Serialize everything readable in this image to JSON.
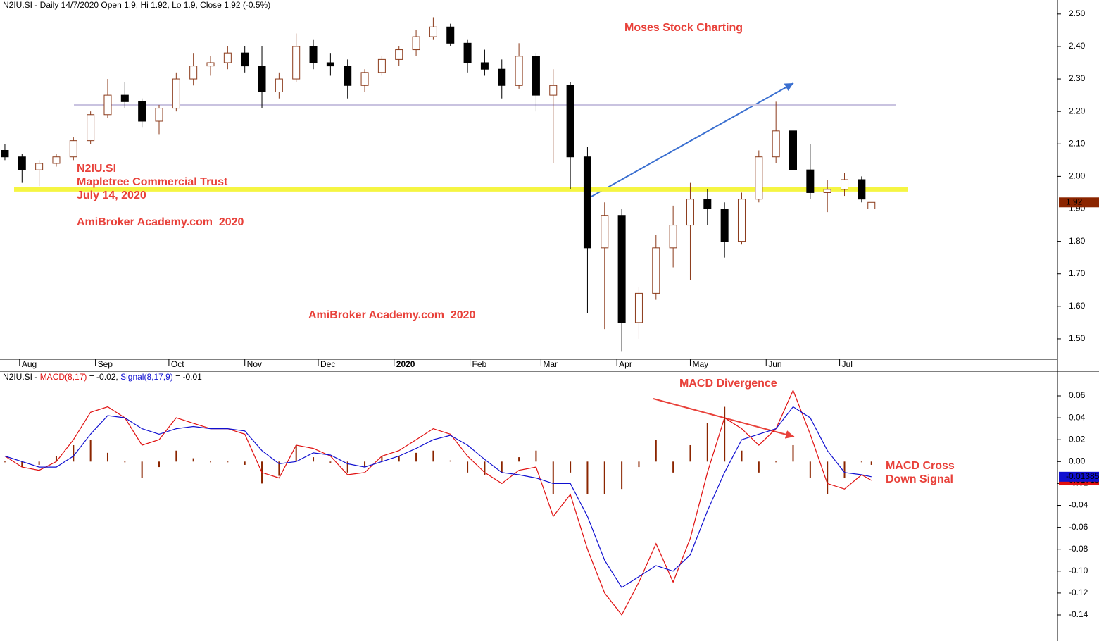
{
  "chart_data": [
    {
      "type": "candlestick",
      "title": "N2IU.SI - Daily 14/7/2020 Open 1.9, Hi 1.92, Lo 1.9, Close 1.92 (-0.5%)",
      "x": [
        "2019-07-26",
        "2019-08-02",
        "2019-08-09",
        "2019-08-16",
        "2019-08-23",
        "2019-08-30",
        "2019-09-06",
        "2019-09-13",
        "2019-09-20",
        "2019-09-27",
        "2019-10-04",
        "2019-10-11",
        "2019-10-18",
        "2019-10-25",
        "2019-11-01",
        "2019-11-08",
        "2019-11-15",
        "2019-11-22",
        "2019-11-29",
        "2019-12-06",
        "2019-12-13",
        "2019-12-20",
        "2019-12-27",
        "2020-01-03",
        "2020-01-10",
        "2020-01-17",
        "2020-01-24",
        "2020-01-31",
        "2020-02-07",
        "2020-02-14",
        "2020-02-21",
        "2020-02-28",
        "2020-03-06",
        "2020-03-13",
        "2020-03-20",
        "2020-03-27",
        "2020-04-03",
        "2020-04-10",
        "2020-04-17",
        "2020-04-24",
        "2020-05-01",
        "2020-05-08",
        "2020-05-15",
        "2020-05-22",
        "2020-05-29",
        "2020-06-05",
        "2020-06-12",
        "2020-06-19",
        "2020-06-26",
        "2020-07-03",
        "2020-07-10",
        "2020-07-14"
      ],
      "open": [
        2.08,
        2.06,
        2.02,
        2.04,
        2.06,
        2.11,
        2.19,
        2.25,
        2.23,
        2.17,
        2.21,
        2.3,
        2.34,
        2.35,
        2.38,
        2.34,
        2.26,
        2.3,
        2.4,
        2.35,
        2.34,
        2.28,
        2.32,
        2.36,
        2.39,
        2.43,
        2.46,
        2.41,
        2.35,
        2.33,
        2.28,
        2.37,
        2.25,
        2.28,
        2.06,
        1.78,
        1.88,
        1.55,
        1.64,
        1.78,
        1.85,
        1.93,
        1.9,
        1.8,
        1.93,
        2.06,
        2.14,
        2.02,
        1.95,
        1.96,
        1.99,
        1.9
      ],
      "high": [
        2.1,
        2.07,
        2.05,
        2.07,
        2.12,
        2.2,
        2.3,
        2.29,
        2.24,
        2.22,
        2.32,
        2.38,
        2.37,
        2.4,
        2.4,
        2.4,
        2.32,
        2.44,
        2.42,
        2.38,
        2.36,
        2.33,
        2.37,
        2.4,
        2.45,
        2.49,
        2.47,
        2.42,
        2.39,
        2.36,
        2.41,
        2.38,
        2.33,
        2.29,
        2.09,
        1.92,
        1.9,
        1.66,
        1.82,
        1.91,
        1.98,
        1.96,
        1.92,
        1.95,
        2.08,
        2.23,
        2.16,
        2.1,
        1.99,
        2.01,
        2.0,
        1.92
      ],
      "low": [
        2.05,
        1.98,
        1.97,
        2.03,
        2.05,
        2.1,
        2.18,
        2.21,
        2.15,
        2.13,
        2.2,
        2.28,
        2.31,
        2.33,
        2.32,
        2.21,
        2.24,
        2.29,
        2.33,
        2.31,
        2.24,
        2.26,
        2.31,
        2.34,
        2.37,
        2.42,
        2.4,
        2.32,
        2.31,
        2.24,
        2.27,
        2.2,
        2.04,
        1.96,
        1.58,
        1.53,
        1.46,
        1.5,
        1.62,
        1.72,
        1.68,
        1.85,
        1.75,
        1.79,
        1.92,
        2.04,
        1.97,
        1.93,
        1.89,
        1.94,
        1.92,
        1.9
      ],
      "close": [
        2.06,
        2.02,
        2.04,
        2.06,
        2.11,
        2.19,
        2.25,
        2.23,
        2.17,
        2.21,
        2.3,
        2.34,
        2.35,
        2.38,
        2.34,
        2.26,
        2.3,
        2.4,
        2.35,
        2.34,
        2.28,
        2.32,
        2.36,
        2.39,
        2.43,
        2.46,
        2.41,
        2.35,
        2.33,
        2.28,
        2.37,
        2.25,
        2.28,
        2.06,
        1.78,
        1.88,
        1.55,
        1.64,
        1.78,
        1.85,
        1.93,
        1.9,
        1.8,
        1.93,
        2.06,
        2.14,
        2.02,
        1.95,
        1.96,
        1.99,
        1.93,
        1.92
      ],
      "up_color": "#8b3a1a",
      "down_color": "#000000",
      "levels": [
        {
          "value": 2.22,
          "color": "#c9c3e0"
        },
        {
          "value": 1.96,
          "color": "#f5f542"
        }
      ],
      "annotations": [
        "Moses Stock Charting",
        "N2IU.SI",
        "Mapletree Commercial Trust",
        "July 14, 2020",
        "AmiBroker Academy.com  2020",
        "AmiBroker Academy.com  2020"
      ],
      "xlim": [
        "2019-07-24",
        "2020-09-28"
      ],
      "xticks": [
        {
          "value": "2019-08-01",
          "label": "Aug"
        },
        {
          "value": "2019-09-01",
          "label": "Sep"
        },
        {
          "value": "2019-10-01",
          "label": "Oct"
        },
        {
          "value": "2019-11-01",
          "label": "Nov"
        },
        {
          "value": "2019-12-01",
          "label": "Dec"
        },
        {
          "value": "2020-01-01",
          "label": "2020"
        },
        {
          "value": "2020-02-01",
          "label": "Feb"
        },
        {
          "value": "2020-03-01",
          "label": "Mar"
        },
        {
          "value": "2020-04-01",
          "label": "Apr"
        },
        {
          "value": "2020-05-01",
          "label": "May"
        },
        {
          "value": "2020-06-01",
          "label": "Jun"
        },
        {
          "value": "2020-07-01",
          "label": "Jul"
        }
      ],
      "ylim": [
        1.437,
        2.543
      ],
      "yticks": [
        {
          "value": 2.5,
          "label": "2.50"
        },
        {
          "value": 2.4,
          "label": "2.40"
        },
        {
          "value": 2.3,
          "label": "2.30"
        },
        {
          "value": 2.2,
          "label": "2.20"
        },
        {
          "value": 2.1,
          "label": "2.10"
        },
        {
          "value": 2.0,
          "label": "2.00"
        },
        {
          "value": 1.9,
          "label": "1.90"
        },
        {
          "value": 1.8,
          "label": "1.80"
        },
        {
          "value": 1.7,
          "label": "1.70"
        },
        {
          "value": 1.6,
          "label": "1.60"
        },
        {
          "value": 1.5,
          "label": "1.50"
        }
      ],
      "grid": false
    },
    {
      "type": "macd",
      "title": "N2IU.SI -",
      "x": [
        "2019-07-26",
        "2019-08-02",
        "2019-08-09",
        "2019-08-16",
        "2019-08-23",
        "2019-08-30",
        "2019-09-06",
        "2019-09-13",
        "2019-09-20",
        "2019-09-27",
        "2019-10-04",
        "2019-10-11",
        "2019-10-18",
        "2019-10-25",
        "2019-11-01",
        "2019-11-08",
        "2019-11-15",
        "2019-11-22",
        "2019-11-29",
        "2019-12-06",
        "2019-12-13",
        "2019-12-20",
        "2019-12-27",
        "2020-01-03",
        "2020-01-10",
        "2020-01-17",
        "2020-01-24",
        "2020-01-31",
        "2020-02-07",
        "2020-02-14",
        "2020-02-21",
        "2020-02-28",
        "2020-03-06",
        "2020-03-13",
        "2020-03-20",
        "2020-03-27",
        "2020-04-03",
        "2020-04-10",
        "2020-04-17",
        "2020-04-24",
        "2020-05-01",
        "2020-05-08",
        "2020-05-15",
        "2020-05-22",
        "2020-05-29",
        "2020-06-05",
        "2020-06-12",
        "2020-06-19",
        "2020-06-26",
        "2020-07-03",
        "2020-07-10",
        "2020-07-14"
      ],
      "series": [
        {
          "name": "MACD(8,17)",
          "readout": "= -0.02,",
          "color": "#e01010",
          "type": "line",
          "values": [
            0.005,
            -0.005,
            -0.008,
            0.0,
            0.02,
            0.045,
            0.05,
            0.04,
            0.015,
            0.02,
            0.04,
            0.035,
            0.03,
            0.03,
            0.025,
            -0.01,
            -0.015,
            0.015,
            0.012,
            0.005,
            -0.012,
            -0.01,
            0.005,
            0.01,
            0.02,
            0.03,
            0.025,
            0.005,
            -0.01,
            -0.02,
            -0.008,
            -0.005,
            -0.05,
            -0.03,
            -0.08,
            -0.12,
            -0.14,
            -0.11,
            -0.075,
            -0.11,
            -0.07,
            -0.01,
            0.04,
            0.03,
            0.015,
            0.03,
            0.065,
            0.025,
            -0.02,
            -0.025,
            -0.012,
            -0.01718
          ]
        },
        {
          "name": "Signal(8,17,9)",
          "readout": "= -0.01",
          "color": "#1010d0",
          "type": "line",
          "values": [
            0.005,
            0.0,
            -0.005,
            -0.005,
            0.005,
            0.025,
            0.042,
            0.04,
            0.03,
            0.025,
            0.03,
            0.032,
            0.03,
            0.03,
            0.028,
            0.01,
            -0.002,
            0.0,
            0.008,
            0.006,
            -0.002,
            -0.005,
            0.0,
            0.005,
            0.012,
            0.02,
            0.024,
            0.015,
            0.002,
            -0.01,
            -0.012,
            -0.015,
            -0.02,
            -0.02,
            -0.05,
            -0.09,
            -0.115,
            -0.105,
            -0.095,
            -0.1,
            -0.085,
            -0.045,
            -0.01,
            0.02,
            0.025,
            0.03,
            0.05,
            0.04,
            0.01,
            -0.01,
            -0.012,
            -0.01385
          ]
        },
        {
          "color": "#8b2500",
          "type": "bar",
          "values": [
            0.0,
            -0.005,
            -0.003,
            0.005,
            0.015,
            0.02,
            0.008,
            0.0,
            -0.015,
            -0.005,
            0.01,
            0.003,
            0.0,
            0.0,
            -0.003,
            -0.02,
            -0.013,
            0.015,
            0.004,
            -0.001,
            -0.01,
            -0.005,
            0.005,
            0.005,
            0.008,
            0.01,
            0.001,
            -0.01,
            -0.012,
            -0.01,
            0.004,
            0.01,
            -0.03,
            -0.01,
            -0.03,
            -0.03,
            -0.025,
            -0.005,
            0.02,
            -0.01,
            0.015,
            0.035,
            0.05,
            0.01,
            -0.01,
            0.0,
            0.015,
            -0.015,
            -0.03,
            -0.015,
            0.0,
            -0.003
          ]
        }
      ],
      "annotations": [
        "MACD Divergence",
        "MACD Cross",
        "Down Signal"
      ],
      "xlim": [
        "2019-07-24",
        "2020-09-28"
      ],
      "ylim": [
        -0.1625,
        0.0825
      ],
      "yticks": [
        0.06,
        0.04,
        0.02,
        {
          "value": 0,
          "label": "0.00"
        },
        -0.02,
        -0.04,
        -0.06,
        -0.08,
        {
          "value": -0.1,
          "label": "-0.10"
        },
        -0.12,
        -0.14
      ],
      "grid": false
    }
  ]
}
